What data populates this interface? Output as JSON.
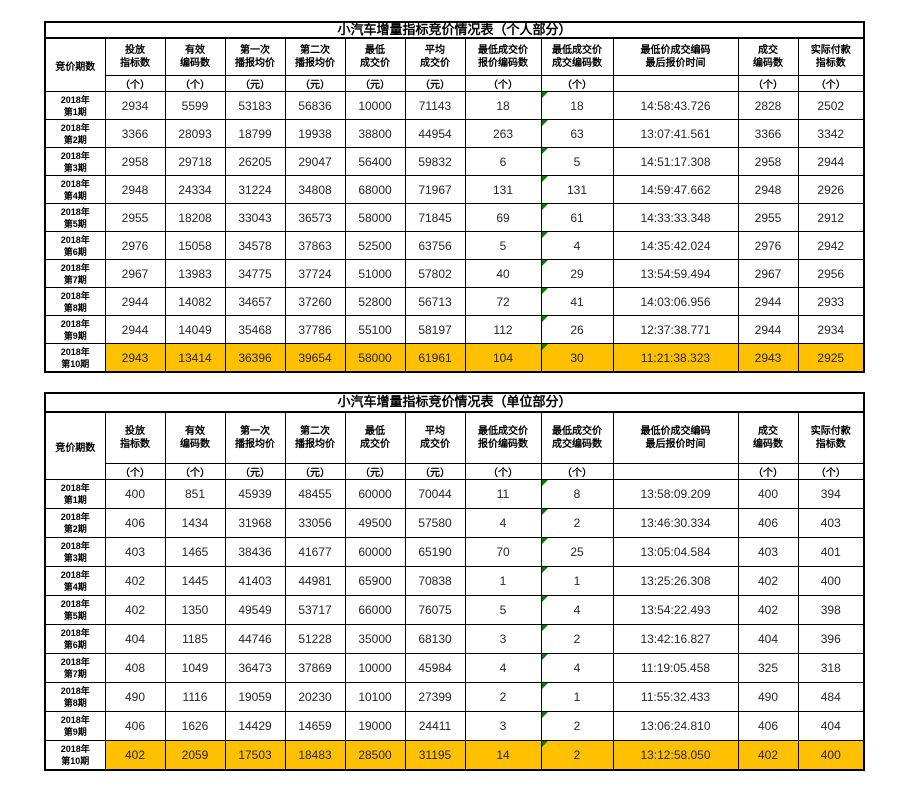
{
  "colors": {
    "highlight_row": "#FFC000",
    "error_flag_triangle": "#008000",
    "table_border": "#000000",
    "background": "#FFFFFF"
  },
  "tables": [
    {
      "title": "小汽车增量指标竞价情况表（个人部分）",
      "header": {
        "period_col": "竞价期数",
        "columns": [
          {
            "label": "投放\n指标数",
            "unit": "（个）"
          },
          {
            "label": "有效\n编码数",
            "unit": "（个）"
          },
          {
            "label": "第一次\n播报均价",
            "unit": "（元）"
          },
          {
            "label": "第二次\n播报均价",
            "unit": "（元）"
          },
          {
            "label": "最低\n成交价",
            "unit": "（元）"
          },
          {
            "label": "平均\n成交价",
            "unit": "（元）"
          },
          {
            "label": "最低成交价\n报价编码数",
            "unit": "（个）"
          },
          {
            "label": "最低成交价\n成交编码数",
            "unit": "（个）"
          },
          {
            "label": "最低价成交编码\n最后报价时间",
            "unit": ""
          },
          {
            "label": "成交\n编码数",
            "unit": "（个）"
          },
          {
            "label": "实际付款\n指标数",
            "unit": "（个）"
          }
        ]
      },
      "rows": [
        {
          "period": "2018年\n第1期",
          "highlight": false,
          "values": [
            "2934",
            "5599",
            "53183",
            "56836",
            "10000",
            "71143",
            "18",
            "18",
            "14:58:43.726",
            "2828",
            "2502"
          ]
        },
        {
          "period": "2018年\n第2期",
          "highlight": false,
          "values": [
            "3366",
            "28093",
            "18799",
            "19938",
            "38800",
            "44954",
            "263",
            "63",
            "13:07:41.561",
            "3366",
            "3342"
          ]
        },
        {
          "period": "2018年\n第3期",
          "highlight": false,
          "values": [
            "2958",
            "29718",
            "26205",
            "29047",
            "56400",
            "59832",
            "6",
            "5",
            "14:51:17.308",
            "2958",
            "2944"
          ]
        },
        {
          "period": "2018年\n第4期",
          "highlight": false,
          "values": [
            "2948",
            "24334",
            "31224",
            "34808",
            "68000",
            "71967",
            "131",
            "131",
            "14:59:47.662",
            "2948",
            "2926"
          ]
        },
        {
          "period": "2018年\n第5期",
          "highlight": false,
          "values": [
            "2955",
            "18208",
            "33043",
            "36573",
            "58000",
            "71845",
            "69",
            "61",
            "14:33:33.348",
            "2955",
            "2912"
          ]
        },
        {
          "period": "2018年\n第6期",
          "highlight": false,
          "values": [
            "2976",
            "15058",
            "34578",
            "37863",
            "52500",
            "63756",
            "5",
            "4",
            "14:35:42.024",
            "2976",
            "2942"
          ]
        },
        {
          "period": "2018年\n第7期",
          "highlight": false,
          "values": [
            "2967",
            "13983",
            "34775",
            "37724",
            "51000",
            "57802",
            "40",
            "29",
            "13:54:59.494",
            "2967",
            "2956"
          ]
        },
        {
          "period": "2018年\n第8期",
          "highlight": false,
          "values": [
            "2944",
            "14082",
            "34657",
            "37260",
            "52800",
            "56713",
            "72",
            "41",
            "14:03:06.956",
            "2944",
            "2933"
          ]
        },
        {
          "period": "2018年\n第9期",
          "highlight": false,
          "values": [
            "2944",
            "14049",
            "35468",
            "37786",
            "55100",
            "58197",
            "112",
            "26",
            "12:37:38.771",
            "2944",
            "2934"
          ]
        },
        {
          "period": "2018年\n第10期",
          "highlight": true,
          "values": [
            "2943",
            "13414",
            "36396",
            "39654",
            "58000",
            "61961",
            "104",
            "30",
            "11:21:38.323",
            "2943",
            "2925"
          ]
        }
      ]
    },
    {
      "title": "小汽车增量指标竞价情况表（单位部分）",
      "header": {
        "period_col": "竞价期数",
        "columns": [
          {
            "label": "投放\n指标数",
            "unit": "（个）"
          },
          {
            "label": "有效\n编码数",
            "unit": "（个）"
          },
          {
            "label": "第一次\n播报均价",
            "unit": "（元）"
          },
          {
            "label": "第二次\n播报均价",
            "unit": "（元）"
          },
          {
            "label": "最低\n成交价",
            "unit": "（元）"
          },
          {
            "label": "平均\n成交价",
            "unit": "（元）"
          },
          {
            "label": "最低成交价\n报价编码数",
            "unit": "（个）"
          },
          {
            "label": "最低成交价\n成交编码数",
            "unit": "（个）"
          },
          {
            "label": "最低价成交编码\n最后报价时间",
            "unit": ""
          },
          {
            "label": "成交\n编码数",
            "unit": "（个）"
          },
          {
            "label": "实际付款\n指标数",
            "unit": "（个）"
          }
        ]
      },
      "rows": [
        {
          "period": "2018年\n第1期",
          "highlight": false,
          "values": [
            "400",
            "851",
            "45939",
            "48455",
            "60000",
            "70044",
            "11",
            "8",
            "13:58:09.209",
            "400",
            "394"
          ]
        },
        {
          "period": "2018年\n第2期",
          "highlight": false,
          "values": [
            "406",
            "1434",
            "31968",
            "33056",
            "49500",
            "57580",
            "4",
            "2",
            "13:46:30.334",
            "406",
            "403"
          ]
        },
        {
          "period": "2018年\n第3期",
          "highlight": false,
          "values": [
            "403",
            "1465",
            "38436",
            "41677",
            "60000",
            "65190",
            "70",
            "25",
            "13:05:04.584",
            "403",
            "401"
          ]
        },
        {
          "period": "2018年\n第4期",
          "highlight": false,
          "values": [
            "402",
            "1445",
            "41403",
            "44981",
            "65900",
            "70838",
            "1",
            "1",
            "13:25:26.308",
            "402",
            "400"
          ]
        },
        {
          "period": "2018年\n第5期",
          "highlight": false,
          "values": [
            "402",
            "1350",
            "49549",
            "53717",
            "66000",
            "76075",
            "5",
            "4",
            "13:54:22.493",
            "402",
            "398"
          ]
        },
        {
          "period": "2018年\n第6期",
          "highlight": false,
          "values": [
            "404",
            "1185",
            "44746",
            "51228",
            "35000",
            "68130",
            "3",
            "2",
            "13:42:16.827",
            "404",
            "396"
          ]
        },
        {
          "period": "2018年\n第7期",
          "highlight": false,
          "values": [
            "408",
            "1049",
            "36473",
            "37869",
            "10000",
            "45984",
            "4",
            "4",
            "11:19:05.458",
            "325",
            "318"
          ]
        },
        {
          "period": "2018年\n第8期",
          "highlight": false,
          "values": [
            "490",
            "1116",
            "19059",
            "20230",
            "10100",
            "27399",
            "2",
            "1",
            "11:55:32.433",
            "490",
            "484"
          ]
        },
        {
          "period": "2018年\n第9期",
          "highlight": false,
          "values": [
            "406",
            "1626",
            "14429",
            "14659",
            "19000",
            "24411",
            "3",
            "2",
            "13:06:24.810",
            "406",
            "404"
          ]
        },
        {
          "period": "2018年\n第10期",
          "highlight": true,
          "values": [
            "402",
            "2059",
            "17503",
            "18483",
            "28500",
            "31195",
            "14",
            "2",
            "13:12:58.050",
            "402",
            "400"
          ]
        }
      ]
    }
  ]
}
